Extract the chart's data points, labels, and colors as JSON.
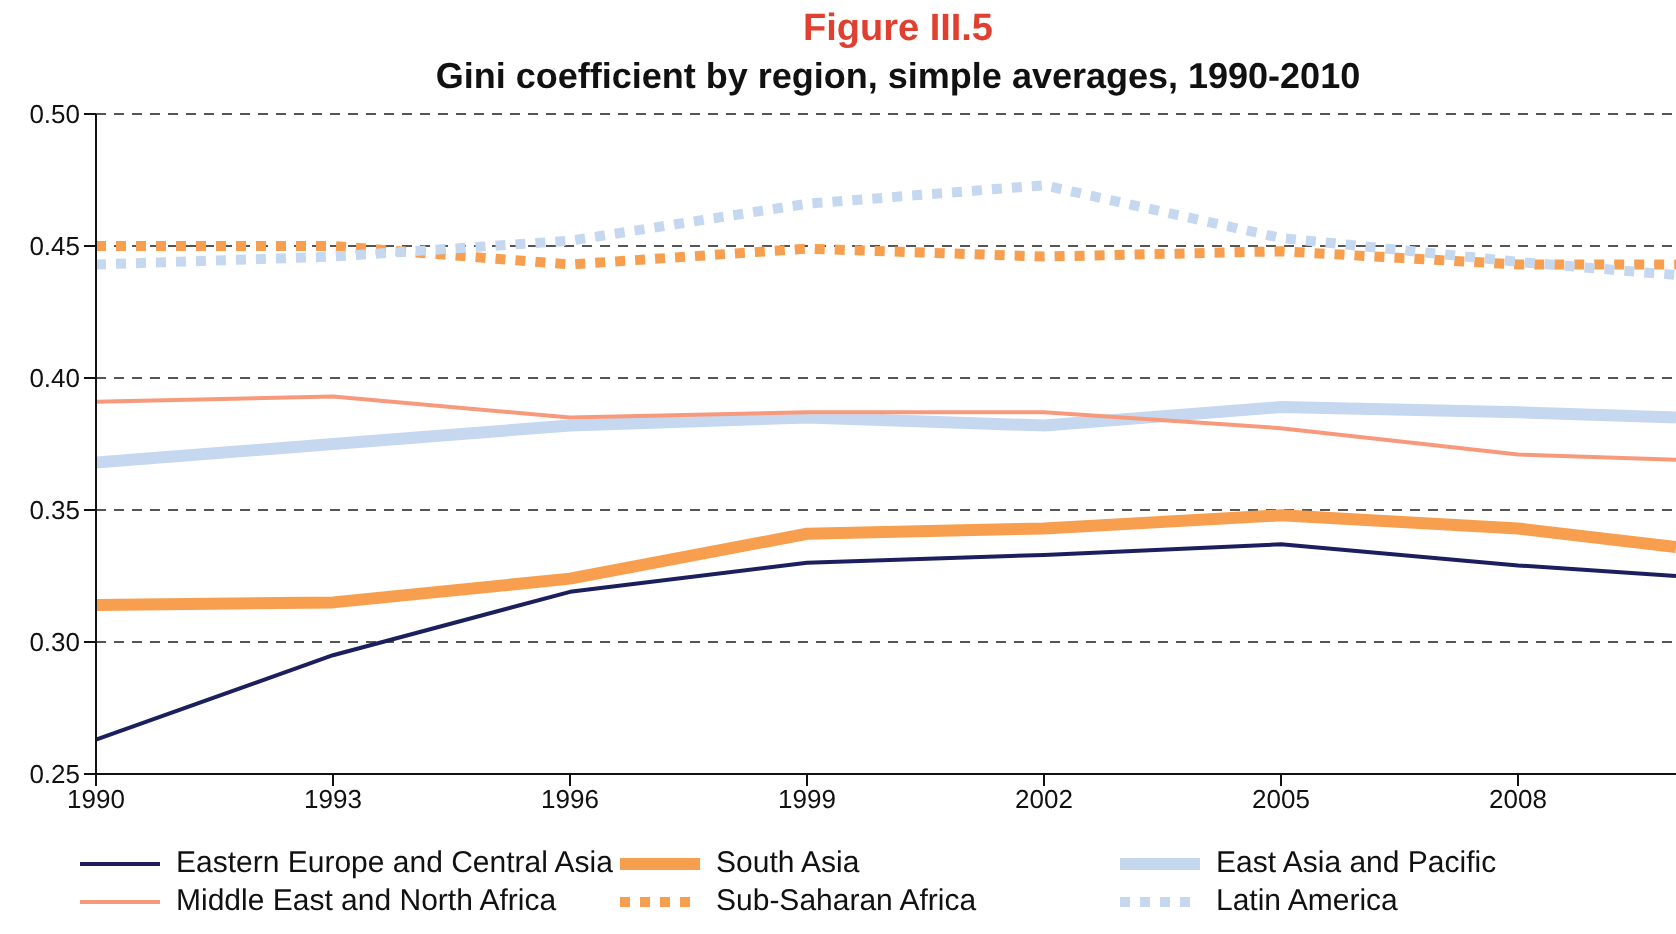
{
  "chart_data": {
    "type": "line",
    "title": "Figure III.5",
    "subtitle": "Gini coefficient by region, simple averages, 1990-2010",
    "x": [
      1990,
      1993,
      1996,
      1999,
      2002,
      2005,
      2008,
      2010
    ],
    "xlim": [
      1990,
      2010
    ],
    "xticks": [
      1990,
      1993,
      1996,
      1999,
      2002,
      2005,
      2008
    ],
    "ylim": [
      0.25,
      0.5
    ],
    "yticks": [
      {
        "value": 0.25,
        "label": "0.25"
      },
      {
        "value": 0.3,
        "label": "0.30"
      },
      {
        "value": 0.35,
        "label": "0.35"
      },
      {
        "value": 0.4,
        "label": "0.40"
      },
      {
        "value": 0.45,
        "label": "0.45"
      },
      {
        "value": 0.5,
        "label": "0.50"
      }
    ],
    "grid": "y",
    "legend": "bottom",
    "marker": "none",
    "series": [
      {
        "name": "Eastern Europe and Central Asia",
        "color": "#1b1f5e",
        "line_style": "solid",
        "values": [
          0.263,
          0.295,
          0.319,
          0.33,
          0.333,
          0.337,
          0.329,
          0.325
        ]
      },
      {
        "name": "South Asia",
        "color": "#f79f4f",
        "line_style": "solid",
        "values": [
          0.314,
          0.315,
          0.324,
          0.341,
          0.343,
          0.348,
          0.343,
          0.336
        ]
      },
      {
        "name": "East Asia and Pacific",
        "color": "#c5d8f0",
        "line_style": "solid",
        "values": [
          0.368,
          0.375,
          0.382,
          0.385,
          0.382,
          0.389,
          0.387,
          0.385
        ]
      },
      {
        "name": "Middle East and North Africa",
        "color": "#f79a7c",
        "line_style": "solid",
        "values": [
          0.391,
          0.393,
          0.385,
          0.387,
          0.387,
          0.381,
          0.371,
          0.369
        ]
      },
      {
        "name": "Sub-Saharan Africa",
        "color": "#f79f4f",
        "line_style": "dotted",
        "values": [
          0.45,
          0.45,
          0.443,
          0.449,
          0.446,
          0.448,
          0.443,
          0.443
        ]
      },
      {
        "name": "Latin America",
        "color": "#c5d8f0",
        "line_style": "dotted",
        "values": [
          0.443,
          0.446,
          0.452,
          0.466,
          0.473,
          0.453,
          0.444,
          0.439
        ]
      }
    ]
  }
}
